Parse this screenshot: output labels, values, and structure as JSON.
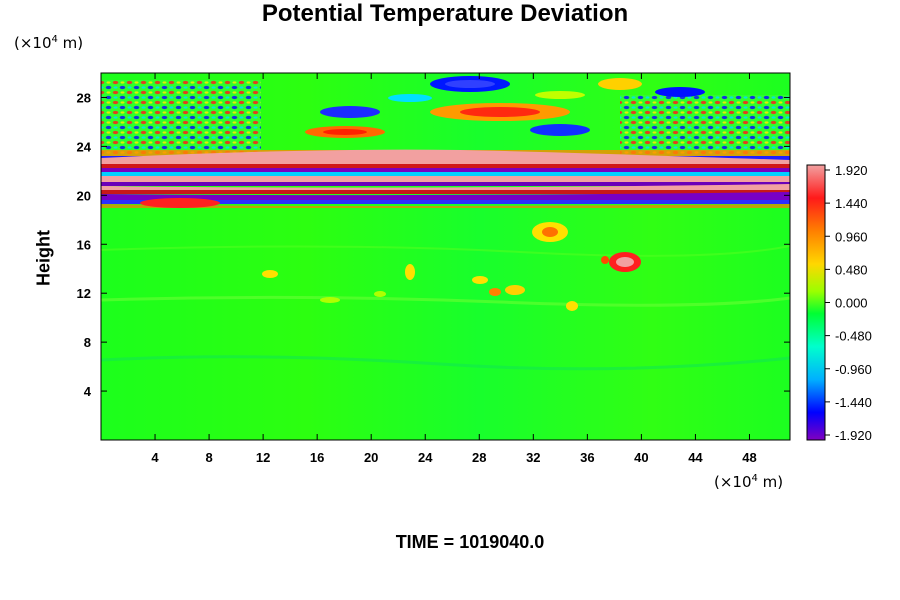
{
  "chart_data": {
    "type": "heatmap",
    "title": "Potential Temperature Deviation",
    "ylabel": "Height",
    "x_unit": {
      "prefix": "(×10",
      "exp": "4",
      "suffix": " m)"
    },
    "y_unit": {
      "prefix": "(×10",
      "exp": "4",
      "suffix": " m)"
    },
    "x_ticks": [
      4,
      8,
      12,
      16,
      20,
      24,
      28,
      32,
      36,
      40,
      44,
      48
    ],
    "y_ticks": [
      4,
      8,
      12,
      16,
      20,
      24,
      28
    ],
    "xlim": [
      0,
      51
    ],
    "ylim": [
      0,
      30
    ],
    "colorbar": {
      "ticks": [
        "1.920",
        "1.440",
        "0.960",
        "0.480",
        "0.000",
        "-0.480",
        "-0.960",
        "-1.440",
        "-1.920"
      ],
      "range": [
        -1.92,
        1.92
      ],
      "palette": [
        "#f2a0a0",
        "#ff1a1a",
        "#ff8000",
        "#ffd700",
        "#9aff00",
        "#00ff33",
        "#00ffcc",
        "#00b0ff",
        "#0000ff",
        "#8000c0"
      ]
    },
    "footer": "TIME = 1019040.0"
  }
}
